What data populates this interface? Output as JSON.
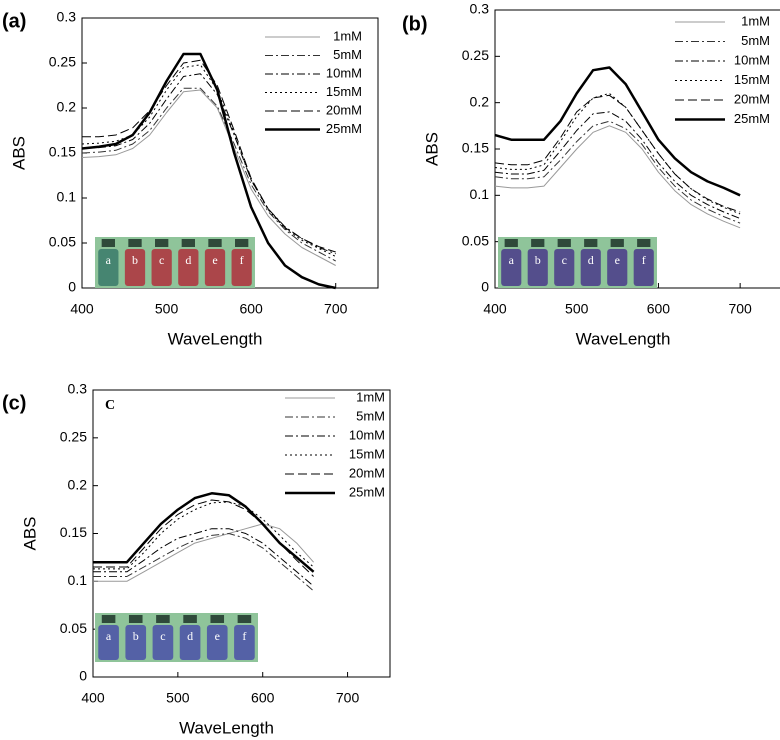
{
  "chart_data": [
    {
      "type": "line",
      "panel_label": "(a)",
      "xlabel": "WaveLength",
      "ylabel": "ABS",
      "xlim": [
        400,
        750
      ],
      "xticks": [
        400,
        500,
        600,
        700
      ],
      "ylim": [
        0,
        0.3
      ],
      "yticks": [
        0,
        0.05,
        0.1,
        0.15,
        0.2,
        0.25,
        0.3
      ],
      "inset_labels": [
        "a",
        "b",
        "c",
        "d",
        "e",
        "f"
      ],
      "x": [
        400,
        420,
        440,
        460,
        480,
        500,
        520,
        540,
        560,
        580,
        600,
        620,
        640,
        660,
        680,
        700
      ],
      "series": [
        {
          "name": "1mM",
          "color": "#999999",
          "dash": "solid",
          "width": 1,
          "values": [
            0.145,
            0.146,
            0.148,
            0.155,
            0.17,
            0.195,
            0.218,
            0.22,
            0.2,
            0.155,
            0.11,
            0.08,
            0.06,
            0.045,
            0.035,
            0.025
          ]
        },
        {
          "name": "5mM",
          "color": "#333333",
          "dash": "dashdot",
          "width": 1,
          "values": [
            0.15,
            0.151,
            0.153,
            0.16,
            0.175,
            0.2,
            0.222,
            0.222,
            0.202,
            0.16,
            0.115,
            0.085,
            0.065,
            0.05,
            0.04,
            0.03
          ]
        },
        {
          "name": "10mM",
          "color": "#000000",
          "dash": "dashdot",
          "width": 1,
          "values": [
            0.155,
            0.156,
            0.158,
            0.165,
            0.183,
            0.21,
            0.235,
            0.238,
            0.215,
            0.17,
            0.12,
            0.088,
            0.068,
            0.055,
            0.045,
            0.038
          ]
        },
        {
          "name": "15mM",
          "color": "#000000",
          "dash": "dot",
          "width": 1,
          "values": [
            0.16,
            0.161,
            0.163,
            0.17,
            0.19,
            0.22,
            0.245,
            0.248,
            0.22,
            0.172,
            0.12,
            0.087,
            0.066,
            0.053,
            0.044,
            0.035
          ]
        },
        {
          "name": "20mM",
          "color": "#000000",
          "dash": "dash",
          "width": 1,
          "values": [
            0.168,
            0.168,
            0.17,
            0.178,
            0.197,
            0.225,
            0.25,
            0.253,
            0.225,
            0.175,
            0.122,
            0.088,
            0.067,
            0.055,
            0.046,
            0.04
          ]
        },
        {
          "name": "25mM",
          "color": "#000000",
          "dash": "solid",
          "width": 2.5,
          "values": [
            0.155,
            0.157,
            0.16,
            0.17,
            0.195,
            0.23,
            0.26,
            0.26,
            0.22,
            0.15,
            0.09,
            0.05,
            0.025,
            0.012,
            0.004,
            0
          ]
        }
      ]
    },
    {
      "type": "line",
      "panel_label": "(b)",
      "xlabel": "WaveLength",
      "ylabel": "ABS",
      "xlim": [
        400,
        750
      ],
      "xticks": [
        400,
        500,
        600,
        700
      ],
      "ylim": [
        0,
        0.3
      ],
      "yticks": [
        0,
        0.05,
        0.1,
        0.15,
        0.2,
        0.25,
        0.3
      ],
      "inset_labels": [
        "a",
        "b",
        "c",
        "d",
        "e",
        "f"
      ],
      "x": [
        400,
        420,
        440,
        460,
        480,
        500,
        520,
        540,
        560,
        580,
        600,
        620,
        640,
        660,
        680,
        700
      ],
      "series": [
        {
          "name": "1mM",
          "color": "#999999",
          "dash": "solid",
          "width": 1,
          "values": [
            0.11,
            0.108,
            0.108,
            0.11,
            0.13,
            0.15,
            0.168,
            0.175,
            0.168,
            0.15,
            0.125,
            0.105,
            0.09,
            0.08,
            0.072,
            0.065
          ]
        },
        {
          "name": "5mM",
          "color": "#333333",
          "dash": "dashdot",
          "width": 1,
          "values": [
            0.12,
            0.118,
            0.118,
            0.12,
            0.138,
            0.158,
            0.175,
            0.18,
            0.172,
            0.155,
            0.13,
            0.11,
            0.095,
            0.085,
            0.077,
            0.07
          ]
        },
        {
          "name": "10mM",
          "color": "#000000",
          "dash": "dashdot",
          "width": 1,
          "values": [
            0.125,
            0.123,
            0.123,
            0.127,
            0.148,
            0.17,
            0.188,
            0.19,
            0.18,
            0.16,
            0.135,
            0.115,
            0.1,
            0.09,
            0.082,
            0.075
          ]
        },
        {
          "name": "15mM",
          "color": "#000000",
          "dash": "dot",
          "width": 1,
          "values": [
            0.13,
            0.128,
            0.128,
            0.133,
            0.158,
            0.185,
            0.205,
            0.21,
            0.195,
            0.17,
            0.145,
            0.123,
            0.107,
            0.095,
            0.087,
            0.08
          ]
        },
        {
          "name": "20mM",
          "color": "#000000",
          "dash": "dash",
          "width": 1,
          "values": [
            0.135,
            0.133,
            0.133,
            0.138,
            0.162,
            0.19,
            0.205,
            0.208,
            0.195,
            0.17,
            0.145,
            0.123,
            0.107,
            0.096,
            0.088,
            0.082
          ]
        },
        {
          "name": "25mM",
          "color": "#000000",
          "dash": "solid",
          "width": 2.5,
          "values": [
            0.165,
            0.16,
            0.16,
            0.16,
            0.18,
            0.21,
            0.235,
            0.238,
            0.22,
            0.19,
            0.16,
            0.14,
            0.125,
            0.115,
            0.108,
            0.1
          ]
        }
      ]
    },
    {
      "type": "line",
      "panel_label": "(c)",
      "inner_label": "C",
      "xlabel": "WaveLength",
      "ylabel": "ABS",
      "xlim": [
        400,
        750
      ],
      "xticks": [
        400,
        500,
        600,
        700
      ],
      "ylim": [
        0,
        0.3
      ],
      "yticks": [
        0,
        0.05,
        0.1,
        0.15,
        0.2,
        0.25,
        0.3
      ],
      "inset_labels": [
        "a",
        "b",
        "c",
        "d",
        "e",
        "f"
      ],
      "x": [
        400,
        420,
        440,
        460,
        480,
        500,
        520,
        540,
        560,
        580,
        600,
        620,
        640,
        660
      ],
      "series": [
        {
          "name": "1mM",
          "color": "#999999",
          "dash": "solid",
          "width": 1,
          "values": [
            0.1,
            0.1,
            0.1,
            0.11,
            0.12,
            0.13,
            0.14,
            0.145,
            0.15,
            0.155,
            0.16,
            0.155,
            0.14,
            0.12
          ]
        },
        {
          "name": "5mM",
          "color": "#333333",
          "dash": "dashdot",
          "width": 1,
          "values": [
            0.105,
            0.105,
            0.105,
            0.115,
            0.125,
            0.135,
            0.143,
            0.148,
            0.15,
            0.145,
            0.135,
            0.12,
            0.105,
            0.09
          ]
        },
        {
          "name": "10mM",
          "color": "#000000",
          "dash": "dashdot",
          "width": 1,
          "values": [
            0.11,
            0.11,
            0.11,
            0.122,
            0.135,
            0.145,
            0.15,
            0.155,
            0.155,
            0.15,
            0.14,
            0.125,
            0.11,
            0.095
          ]
        },
        {
          "name": "15mM",
          "color": "#000000",
          "dash": "dot",
          "width": 1,
          "values": [
            0.113,
            0.113,
            0.113,
            0.13,
            0.15,
            0.165,
            0.175,
            0.182,
            0.183,
            0.178,
            0.165,
            0.148,
            0.13,
            0.115
          ]
        },
        {
          "name": "20mM",
          "color": "#000000",
          "dash": "dash",
          "width": 1,
          "values": [
            0.115,
            0.115,
            0.115,
            0.135,
            0.155,
            0.17,
            0.18,
            0.185,
            0.183,
            0.175,
            0.16,
            0.14,
            0.122,
            0.105
          ]
        },
        {
          "name": "25mM",
          "color": "#000000",
          "dash": "solid",
          "width": 2.5,
          "values": [
            0.12,
            0.12,
            0.12,
            0.14,
            0.16,
            0.175,
            0.187,
            0.192,
            0.19,
            0.178,
            0.16,
            0.14,
            0.125,
            0.11
          ]
        }
      ]
    }
  ]
}
